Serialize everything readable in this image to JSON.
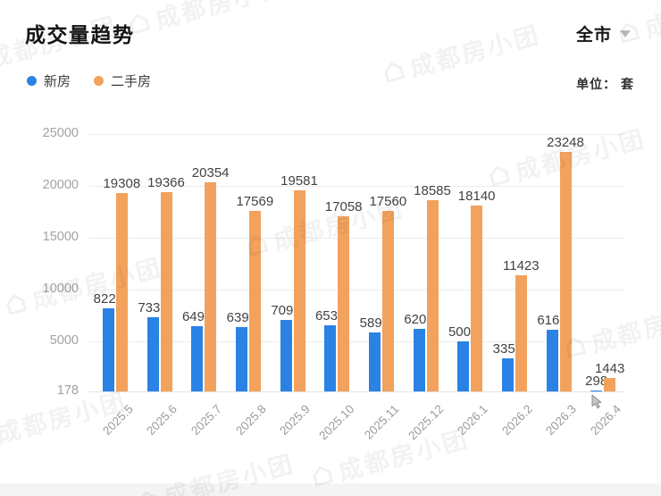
{
  "header": {
    "title": "成交量趋势",
    "region": "全市",
    "unit_label": "单位： 套"
  },
  "legend": {
    "items": [
      {
        "label": "新房",
        "color": "#2a82e4"
      },
      {
        "label": "二手房",
        "color": "#f2a25c"
      }
    ]
  },
  "watermark": {
    "text": "成都房小团"
  },
  "chart_data": {
    "type": "bar",
    "title": "成交量趋势",
    "unit": "套",
    "legend_position": "top-left",
    "grid": true,
    "value_labels": true,
    "categories": [
      "2025.5",
      "2025.6",
      "2025.7",
      "2025.8",
      "2025.9",
      "2025.10",
      "2025.11",
      "2025.12",
      "2026.1",
      "2026.2",
      "2026.3",
      "2026.4"
    ],
    "series": [
      {
        "name": "新房",
        "color": "#2a82e4",
        "values": [
          8227,
          7336,
          6491,
          6398,
          7093,
          6536,
          5898,
          6203,
          5007,
          3354,
          6165,
          298
        ]
      },
      {
        "name": "二手房",
        "color": "#f2a25c",
        "values": [
          19308,
          19366,
          20354,
          17569,
          19581,
          17058,
          17560,
          18585,
          18140,
          11423,
          23248,
          1443
        ]
      }
    ],
    "y_axis": {
      "min": 178,
      "max": 25000,
      "ticks": [
        178,
        5000,
        10000,
        15000,
        20000,
        25000
      ]
    }
  }
}
